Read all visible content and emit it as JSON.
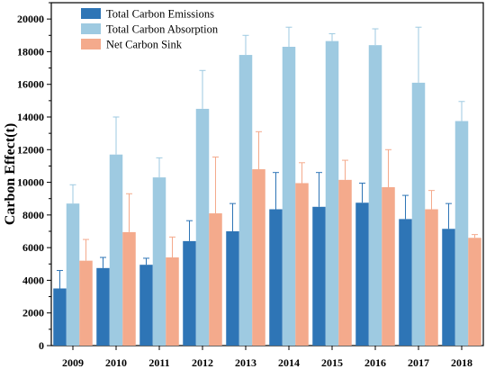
{
  "chart_data": {
    "type": "bar",
    "title": "",
    "xlabel": "",
    "ylabel": "Carbon Effect(t)",
    "ylim": [
      0,
      21000
    ],
    "yticks": [
      0,
      2000,
      4000,
      6000,
      8000,
      10000,
      12000,
      14000,
      16000,
      18000,
      20000
    ],
    "grid": false,
    "legend_position": "top-left",
    "categories": [
      "2009",
      "2010",
      "2011",
      "2012",
      "2013",
      "2014",
      "2015",
      "2016",
      "2017",
      "2018"
    ],
    "series": [
      {
        "name": "Total Carbon Emissions",
        "color": "#2e75b6",
        "values": [
          3500,
          4750,
          4950,
          6400,
          7000,
          8350,
          8500,
          8750,
          7750,
          7150
        ],
        "errors": [
          1100,
          650,
          400,
          1250,
          1700,
          2250,
          2100,
          1200,
          1450,
          1550
        ]
      },
      {
        "name": "Total Carbon Absorption",
        "color": "#9ecae1",
        "values": [
          8700,
          11700,
          10300,
          14500,
          17800,
          18300,
          18650,
          18400,
          16100,
          13750
        ],
        "errors": [
          1150,
          2300,
          1200,
          2350,
          1200,
          1200,
          450,
          1000,
          3400,
          1200
        ]
      },
      {
        "name": "Net Carbon Sink",
        "color": "#f4aa8c",
        "values": [
          5200,
          6950,
          5400,
          8100,
          10800,
          9950,
          10150,
          9700,
          8350,
          6600
        ],
        "errors": [
          1300,
          2350,
          1250,
          3450,
          2300,
          1250,
          1200,
          2300,
          1150,
          200
        ]
      }
    ]
  }
}
